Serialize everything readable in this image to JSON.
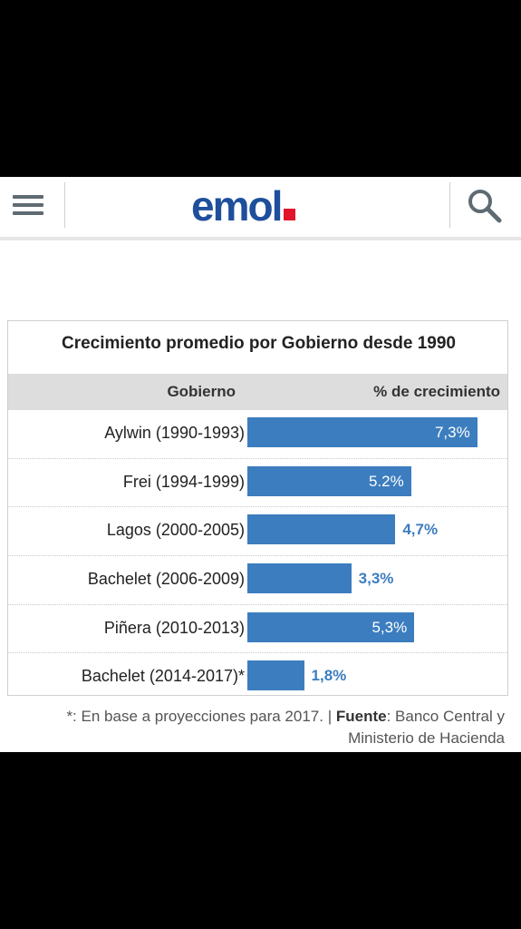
{
  "header": {
    "logo_text": "emol",
    "icons": {
      "menu": "hamburger-menu-icon",
      "search": "search-icon"
    },
    "colors": {
      "logo": "#1e4f9c",
      "logo_dot": "#e2142d"
    }
  },
  "chart_data": {
    "type": "bar",
    "orientation": "horizontal",
    "title": "Crecimiento promedio por Gobierno desde 1990",
    "column_headers": {
      "category": "Gobierno",
      "value": "% de crecimiento"
    },
    "categories": [
      "Aylwin (1990-1993)",
      "Frei (1994-1999)",
      "Lagos (2000-2005)",
      "Bachelet (2006-2009)",
      "Piñera (2010-2013)",
      "Bachelet (2014-2017)*"
    ],
    "values": [
      7.3,
      5.2,
      4.7,
      3.3,
      5.3,
      1.8
    ],
    "value_labels": [
      "7,3%",
      "5.2%",
      "4,7%",
      "3,3%",
      "5,3%",
      "1,8%"
    ],
    "xlim": [
      0,
      8
    ],
    "grid": false,
    "bar_color": "#3c7dbf"
  },
  "footnote": {
    "star": "*:",
    "note": "En base a proyecciones para 2017. |",
    "source_label": "Fuente",
    "source_text": ": Banco Central y Ministerio de Hacienda"
  }
}
